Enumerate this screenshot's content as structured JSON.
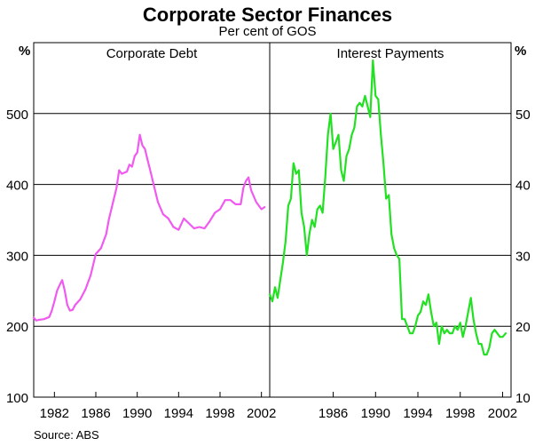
{
  "title": "Corporate Sector Finances",
  "subtitle": "Per cent of GOS",
  "source": "Source: ABS",
  "colors": {
    "corporate_debt": "#f05af0",
    "interest_payments": "#22e022",
    "gridline": "#000000"
  },
  "chart_data": [
    {
      "type": "line",
      "panel_title": "Corporate Debt",
      "ylabel": "%",
      "ylim": [
        100,
        600
      ],
      "yticks": [
        100,
        200,
        300,
        400,
        500
      ],
      "xlim": [
        1980.0,
        2002.8
      ],
      "xticks": [
        1982,
        1986,
        1990,
        1994,
        1998,
        2002
      ],
      "grid": true,
      "series": [
        {
          "x": [
            1980.0,
            1980.25,
            1980.5,
            1981.0,
            1981.5,
            1981.75,
            1982.0,
            1982.25,
            1982.5,
            1982.75,
            1983.0,
            1983.25,
            1983.5,
            1983.75,
            1984.0,
            1984.5,
            1985.0,
            1985.5,
            1986.0,
            1986.25,
            1986.5,
            1987.0,
            1987.25,
            1987.5,
            1988.0,
            1988.25,
            1988.5,
            1989.0,
            1989.25,
            1989.5,
            1989.75,
            1990.0,
            1990.25,
            1990.5,
            1990.75,
            1991.0,
            1991.25,
            1991.5,
            1992.0,
            1992.5,
            1993.0,
            1993.5,
            1994.0,
            1994.5,
            1995.0,
            1995.5,
            1996.0,
            1996.5,
            1997.0,
            1997.5,
            1998.0,
            1998.5,
            1999.0,
            1999.5,
            2000.0,
            2000.25,
            2000.5,
            2000.75,
            2001.0,
            2001.5,
            2002.0,
            2002.3
          ],
          "values": [
            212,
            208,
            209,
            210,
            213,
            222,
            235,
            250,
            258,
            265,
            250,
            230,
            222,
            223,
            230,
            238,
            252,
            272,
            302,
            306,
            310,
            330,
            350,
            365,
            395,
            420,
            415,
            418,
            428,
            425,
            440,
            445,
            470,
            455,
            450,
            435,
            420,
            405,
            375,
            358,
            352,
            340,
            336,
            352,
            345,
            338,
            340,
            338,
            348,
            360,
            365,
            378,
            378,
            372,
            372,
            395,
            405,
            410,
            392,
            375,
            365,
            368
          ]
        }
      ]
    },
    {
      "type": "line",
      "panel_title": "Interest Payments",
      "ylabel": "%",
      "ylim": [
        10,
        60
      ],
      "yticks": [
        10,
        20,
        30,
        40,
        50
      ],
      "xlim": [
        1980.0,
        2002.8
      ],
      "xticks": [
        1986,
        1990,
        1994,
        1998,
        2002
      ],
      "grid": true,
      "series": [
        {
          "x": [
            1980.0,
            1980.25,
            1980.5,
            1980.75,
            1981.0,
            1981.25,
            1981.5,
            1981.75,
            1982.0,
            1982.25,
            1982.5,
            1982.75,
            1983.0,
            1983.25,
            1983.5,
            1983.75,
            1984.0,
            1984.25,
            1984.5,
            1984.75,
            1985.0,
            1985.25,
            1985.5,
            1985.75,
            1986.0,
            1986.25,
            1986.5,
            1986.75,
            1987.0,
            1987.25,
            1987.5,
            1987.75,
            1988.0,
            1988.25,
            1988.5,
            1988.75,
            1989.0,
            1989.25,
            1989.5,
            1989.75,
            1990.0,
            1990.25,
            1990.5,
            1990.75,
            1991.0,
            1991.25,
            1991.5,
            1991.75,
            1992.0,
            1992.25,
            1992.5,
            1992.75,
            1993.0,
            1993.25,
            1993.5,
            1993.75,
            1994.0,
            1994.25,
            1994.5,
            1994.75,
            1995.0,
            1995.25,
            1995.5,
            1995.75,
            1996.0,
            1996.25,
            1996.5,
            1996.75,
            1997.0,
            1997.25,
            1997.5,
            1997.75,
            1998.0,
            1998.25,
            1998.5,
            1998.75,
            1999.0,
            1999.25,
            1999.5,
            1999.75,
            2000.0,
            2000.25,
            2000.5,
            2000.75,
            2001.0,
            2001.25,
            2001.5,
            2001.75,
            2002.0,
            2002.3
          ],
          "values": [
            24.5,
            23.5,
            25.5,
            24.0,
            26.5,
            29.0,
            32.0,
            37.0,
            38.0,
            43.0,
            41.5,
            42.0,
            36.0,
            34.0,
            30.0,
            33.0,
            35.0,
            34.0,
            36.5,
            37.0,
            36.0,
            41.0,
            47.0,
            50.0,
            45.0,
            46.0,
            47.0,
            42.0,
            40.5,
            44.0,
            45.0,
            47.0,
            48.0,
            51.0,
            51.5,
            51.0,
            52.5,
            51.0,
            49.5,
            57.5,
            52.5,
            52.0,
            47.0,
            43.0,
            38.0,
            38.5,
            33.0,
            31.0,
            30.0,
            29.5,
            21.0,
            21.0,
            20.0,
            19.0,
            19.0,
            20.0,
            21.5,
            22.0,
            23.5,
            23.0,
            24.5,
            22.0,
            20.0,
            20.5,
            17.5,
            20.0,
            19.0,
            19.5,
            19.0,
            19.0,
            20.0,
            19.5,
            20.5,
            18.5,
            20.0,
            22.0,
            24.0,
            21.0,
            19.0,
            17.5,
            17.5,
            16.0,
            16.0,
            17.0,
            19.0,
            19.5,
            19.0,
            18.5,
            18.5,
            19.0
          ]
        }
      ]
    }
  ]
}
